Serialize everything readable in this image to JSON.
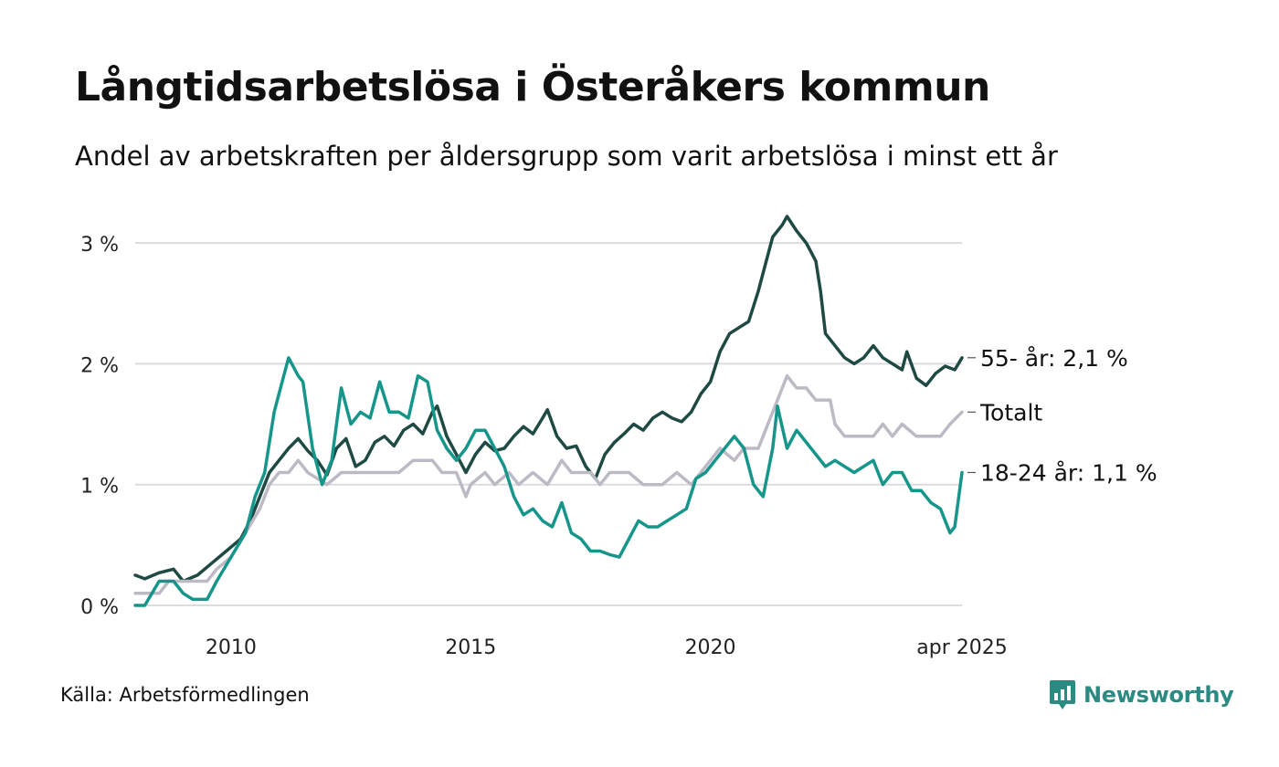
{
  "title": "Långtidsarbetslösa i Österåkers kommun",
  "subtitle": "Andel av arbetskraften per åldersgrupp som varit arbetslösa i minst ett år",
  "source": "Källa: Arbetsförmedlingen",
  "brand": {
    "name": "Newsworthy",
    "icon": "newsworthy-chart-icon",
    "color": "#2b8a82"
  },
  "chart_data": {
    "type": "line",
    "title": "Långtidsarbetslösa i Österåkers kommun",
    "subtitle": "Andel av arbetskraften per åldersgrupp som varit arbetslösa i minst ett år",
    "xlabel": "",
    "ylabel": "",
    "x_range": [
      2008.0,
      2025.25
    ],
    "ylim": [
      0,
      3.2
    ],
    "y_ticks": [
      0,
      1,
      2,
      3
    ],
    "y_tick_labels": [
      "0 %",
      "1 %",
      "2 %",
      "3 %"
    ],
    "x_ticks": [
      2010,
      2015,
      2020,
      2025.25
    ],
    "x_tick_labels": [
      "2010",
      "2015",
      "2020",
      "apr 2025"
    ],
    "grid": "horizontal",
    "legend": "direct labels at line ends (right)",
    "series": [
      {
        "name": "55- år",
        "end_label": "55- år: 2,1 %",
        "color": "#1f4a44",
        "points": [
          [
            2008.0,
            0.25
          ],
          [
            2008.2,
            0.22
          ],
          [
            2008.5,
            0.27
          ],
          [
            2008.8,
            0.3
          ],
          [
            2009.0,
            0.2
          ],
          [
            2009.3,
            0.25
          ],
          [
            2009.6,
            0.35
          ],
          [
            2009.9,
            0.45
          ],
          [
            2010.2,
            0.55
          ],
          [
            2010.4,
            0.7
          ],
          [
            2010.6,
            0.9
          ],
          [
            2010.8,
            1.1
          ],
          [
            2011.0,
            1.2
          ],
          [
            2011.2,
            1.3
          ],
          [
            2011.4,
            1.38
          ],
          [
            2011.6,
            1.28
          ],
          [
            2011.8,
            1.2
          ],
          [
            2012.0,
            1.08
          ],
          [
            2012.2,
            1.3
          ],
          [
            2012.4,
            1.38
          ],
          [
            2012.6,
            1.15
          ],
          [
            2012.8,
            1.2
          ],
          [
            2013.0,
            1.35
          ],
          [
            2013.2,
            1.4
          ],
          [
            2013.4,
            1.32
          ],
          [
            2013.6,
            1.45
          ],
          [
            2013.8,
            1.5
          ],
          [
            2014.0,
            1.42
          ],
          [
            2014.2,
            1.6
          ],
          [
            2014.3,
            1.65
          ],
          [
            2014.5,
            1.4
          ],
          [
            2014.7,
            1.25
          ],
          [
            2014.9,
            1.1
          ],
          [
            2015.1,
            1.25
          ],
          [
            2015.3,
            1.35
          ],
          [
            2015.5,
            1.28
          ],
          [
            2015.7,
            1.3
          ],
          [
            2015.9,
            1.4
          ],
          [
            2016.1,
            1.48
          ],
          [
            2016.3,
            1.42
          ],
          [
            2016.5,
            1.55
          ],
          [
            2016.6,
            1.62
          ],
          [
            2016.8,
            1.4
          ],
          [
            2017.0,
            1.3
          ],
          [
            2017.2,
            1.32
          ],
          [
            2017.4,
            1.15
          ],
          [
            2017.6,
            1.05
          ],
          [
            2017.8,
            1.25
          ],
          [
            2018.0,
            1.35
          ],
          [
            2018.2,
            1.42
          ],
          [
            2018.4,
            1.5
          ],
          [
            2018.6,
            1.45
          ],
          [
            2018.8,
            1.55
          ],
          [
            2019.0,
            1.6
          ],
          [
            2019.2,
            1.55
          ],
          [
            2019.4,
            1.52
          ],
          [
            2019.6,
            1.6
          ],
          [
            2019.8,
            1.75
          ],
          [
            2020.0,
            1.85
          ],
          [
            2020.2,
            2.1
          ],
          [
            2020.4,
            2.25
          ],
          [
            2020.6,
            2.3
          ],
          [
            2020.8,
            2.35
          ],
          [
            2021.0,
            2.6
          ],
          [
            2021.2,
            2.9
          ],
          [
            2021.3,
            3.05
          ],
          [
            2021.5,
            3.15
          ],
          [
            2021.6,
            3.22
          ],
          [
            2021.8,
            3.1
          ],
          [
            2022.0,
            3.0
          ],
          [
            2022.2,
            2.85
          ],
          [
            2022.3,
            2.6
          ],
          [
            2022.4,
            2.25
          ],
          [
            2022.6,
            2.15
          ],
          [
            2022.8,
            2.05
          ],
          [
            2023.0,
            2.0
          ],
          [
            2023.2,
            2.05
          ],
          [
            2023.4,
            2.15
          ],
          [
            2023.6,
            2.05
          ],
          [
            2023.8,
            2.0
          ],
          [
            2024.0,
            1.95
          ],
          [
            2024.1,
            2.1
          ],
          [
            2024.3,
            1.88
          ],
          [
            2024.5,
            1.82
          ],
          [
            2024.7,
            1.92
          ],
          [
            2024.9,
            1.98
          ],
          [
            2025.1,
            1.95
          ],
          [
            2025.25,
            2.05
          ]
        ]
      },
      {
        "name": "Totalt",
        "end_label": "Totalt",
        "color": "#bdbac5",
        "points": [
          [
            2008.0,
            0.1
          ],
          [
            2008.5,
            0.1
          ],
          [
            2008.7,
            0.2
          ],
          [
            2009.2,
            0.2
          ],
          [
            2009.5,
            0.2
          ],
          [
            2009.7,
            0.3
          ],
          [
            2010.0,
            0.4
          ],
          [
            2010.3,
            0.6
          ],
          [
            2010.6,
            0.8
          ],
          [
            2010.8,
            1.0
          ],
          [
            2011.0,
            1.1
          ],
          [
            2011.2,
            1.1
          ],
          [
            2011.4,
            1.2
          ],
          [
            2011.6,
            1.1
          ],
          [
            2012.0,
            1.0
          ],
          [
            2012.3,
            1.1
          ],
          [
            2012.7,
            1.1
          ],
          [
            2013.0,
            1.1
          ],
          [
            2013.5,
            1.1
          ],
          [
            2013.8,
            1.2
          ],
          [
            2014.2,
            1.2
          ],
          [
            2014.4,
            1.1
          ],
          [
            2014.7,
            1.1
          ],
          [
            2014.9,
            0.9
          ],
          [
            2015.0,
            1.0
          ],
          [
            2015.3,
            1.1
          ],
          [
            2015.5,
            1.0
          ],
          [
            2015.8,
            1.1
          ],
          [
            2016.0,
            1.0
          ],
          [
            2016.3,
            1.1
          ],
          [
            2016.6,
            1.0
          ],
          [
            2016.9,
            1.2
          ],
          [
            2017.1,
            1.1
          ],
          [
            2017.5,
            1.1
          ],
          [
            2017.7,
            1.0
          ],
          [
            2017.9,
            1.1
          ],
          [
            2018.3,
            1.1
          ],
          [
            2018.6,
            1.0
          ],
          [
            2019.0,
            1.0
          ],
          [
            2019.3,
            1.1
          ],
          [
            2019.6,
            1.0
          ],
          [
            2019.8,
            1.1
          ],
          [
            2020.0,
            1.2
          ],
          [
            2020.2,
            1.3
          ],
          [
            2020.5,
            1.2
          ],
          [
            2020.7,
            1.3
          ],
          [
            2021.0,
            1.3
          ],
          [
            2021.1,
            1.4
          ],
          [
            2021.3,
            1.6
          ],
          [
            2021.5,
            1.8
          ],
          [
            2021.6,
            1.9
          ],
          [
            2021.8,
            1.8
          ],
          [
            2022.0,
            1.8
          ],
          [
            2022.2,
            1.7
          ],
          [
            2022.5,
            1.7
          ],
          [
            2022.6,
            1.5
          ],
          [
            2022.8,
            1.4
          ],
          [
            2023.2,
            1.4
          ],
          [
            2023.4,
            1.4
          ],
          [
            2023.6,
            1.5
          ],
          [
            2023.8,
            1.4
          ],
          [
            2024.0,
            1.5
          ],
          [
            2024.3,
            1.4
          ],
          [
            2024.8,
            1.4
          ],
          [
            2025.0,
            1.5
          ],
          [
            2025.25,
            1.6
          ]
        ]
      },
      {
        "name": "18-24 år",
        "end_label": "18-24 år: 1,1 %",
        "color": "#16968a",
        "points": [
          [
            2008.0,
            0.0
          ],
          [
            2008.2,
            0.0
          ],
          [
            2008.5,
            0.2
          ],
          [
            2008.8,
            0.2
          ],
          [
            2009.0,
            0.1
          ],
          [
            2009.2,
            0.05
          ],
          [
            2009.5,
            0.05
          ],
          [
            2009.7,
            0.2
          ],
          [
            2010.0,
            0.4
          ],
          [
            2010.3,
            0.6
          ],
          [
            2010.5,
            0.9
          ],
          [
            2010.7,
            1.1
          ],
          [
            2010.9,
            1.6
          ],
          [
            2011.1,
            1.9
          ],
          [
            2011.2,
            2.05
          ],
          [
            2011.4,
            1.9
          ],
          [
            2011.5,
            1.85
          ],
          [
            2011.7,
            1.3
          ],
          [
            2011.9,
            1.0
          ],
          [
            2012.1,
            1.2
          ],
          [
            2012.3,
            1.8
          ],
          [
            2012.5,
            1.5
          ],
          [
            2012.7,
            1.6
          ],
          [
            2012.9,
            1.55
          ],
          [
            2013.1,
            1.85
          ],
          [
            2013.3,
            1.6
          ],
          [
            2013.5,
            1.6
          ],
          [
            2013.7,
            1.55
          ],
          [
            2013.9,
            1.9
          ],
          [
            2014.1,
            1.85
          ],
          [
            2014.3,
            1.45
          ],
          [
            2014.5,
            1.3
          ],
          [
            2014.7,
            1.2
          ],
          [
            2014.9,
            1.3
          ],
          [
            2015.1,
            1.45
          ],
          [
            2015.3,
            1.45
          ],
          [
            2015.5,
            1.3
          ],
          [
            2015.7,
            1.15
          ],
          [
            2015.9,
            0.9
          ],
          [
            2016.1,
            0.75
          ],
          [
            2016.3,
            0.8
          ],
          [
            2016.5,
            0.7
          ],
          [
            2016.7,
            0.65
          ],
          [
            2016.9,
            0.85
          ],
          [
            2017.1,
            0.6
          ],
          [
            2017.3,
            0.55
          ],
          [
            2017.5,
            0.45
          ],
          [
            2017.7,
            0.45
          ],
          [
            2017.9,
            0.42
          ],
          [
            2018.1,
            0.4
          ],
          [
            2018.3,
            0.55
          ],
          [
            2018.5,
            0.7
          ],
          [
            2018.7,
            0.65
          ],
          [
            2018.9,
            0.65
          ],
          [
            2019.1,
            0.7
          ],
          [
            2019.3,
            0.75
          ],
          [
            2019.5,
            0.8
          ],
          [
            2019.7,
            1.05
          ],
          [
            2019.9,
            1.1
          ],
          [
            2020.1,
            1.2
          ],
          [
            2020.3,
            1.3
          ],
          [
            2020.5,
            1.4
          ],
          [
            2020.7,
            1.3
          ],
          [
            2020.9,
            1.0
          ],
          [
            2021.1,
            0.9
          ],
          [
            2021.3,
            1.3
          ],
          [
            2021.4,
            1.65
          ],
          [
            2021.6,
            1.3
          ],
          [
            2021.8,
            1.45
          ],
          [
            2022.0,
            1.35
          ],
          [
            2022.2,
            1.25
          ],
          [
            2022.4,
            1.15
          ],
          [
            2022.6,
            1.2
          ],
          [
            2022.8,
            1.15
          ],
          [
            2023.0,
            1.1
          ],
          [
            2023.2,
            1.15
          ],
          [
            2023.4,
            1.2
          ],
          [
            2023.6,
            1.0
          ],
          [
            2023.8,
            1.1
          ],
          [
            2024.0,
            1.1
          ],
          [
            2024.2,
            0.95
          ],
          [
            2024.4,
            0.95
          ],
          [
            2024.6,
            0.85
          ],
          [
            2024.8,
            0.8
          ],
          [
            2025.0,
            0.6
          ],
          [
            2025.1,
            0.65
          ],
          [
            2025.25,
            1.1
          ]
        ]
      }
    ]
  }
}
